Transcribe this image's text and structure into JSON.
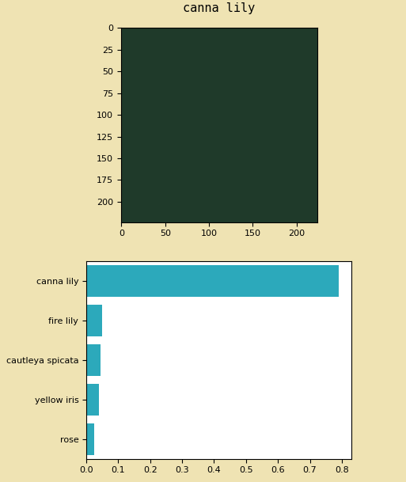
{
  "chart_data": [
    {
      "type": "image",
      "title": "canna lily",
      "xlim": [
        -0.5,
        223.5
      ],
      "ylim": [
        223.5,
        -0.5
      ],
      "xticks": [
        0,
        50,
        100,
        150,
        200
      ],
      "yticks": [
        0,
        25,
        50,
        75,
        100,
        125,
        150,
        175,
        200
      ]
    },
    {
      "type": "bar",
      "orientation": "horizontal",
      "categories": [
        "canna lily",
        "fire lily",
        "cautleya spicata",
        "yellow iris",
        "rose"
      ],
      "values": [
        0.79,
        0.05,
        0.045,
        0.04,
        0.025
      ],
      "color": "#2ca9bb",
      "xlim": [
        0,
        0.83
      ],
      "xticks": [
        0.0,
        0.1,
        0.2,
        0.3,
        0.4,
        0.5,
        0.6,
        0.7,
        0.8
      ]
    }
  ]
}
